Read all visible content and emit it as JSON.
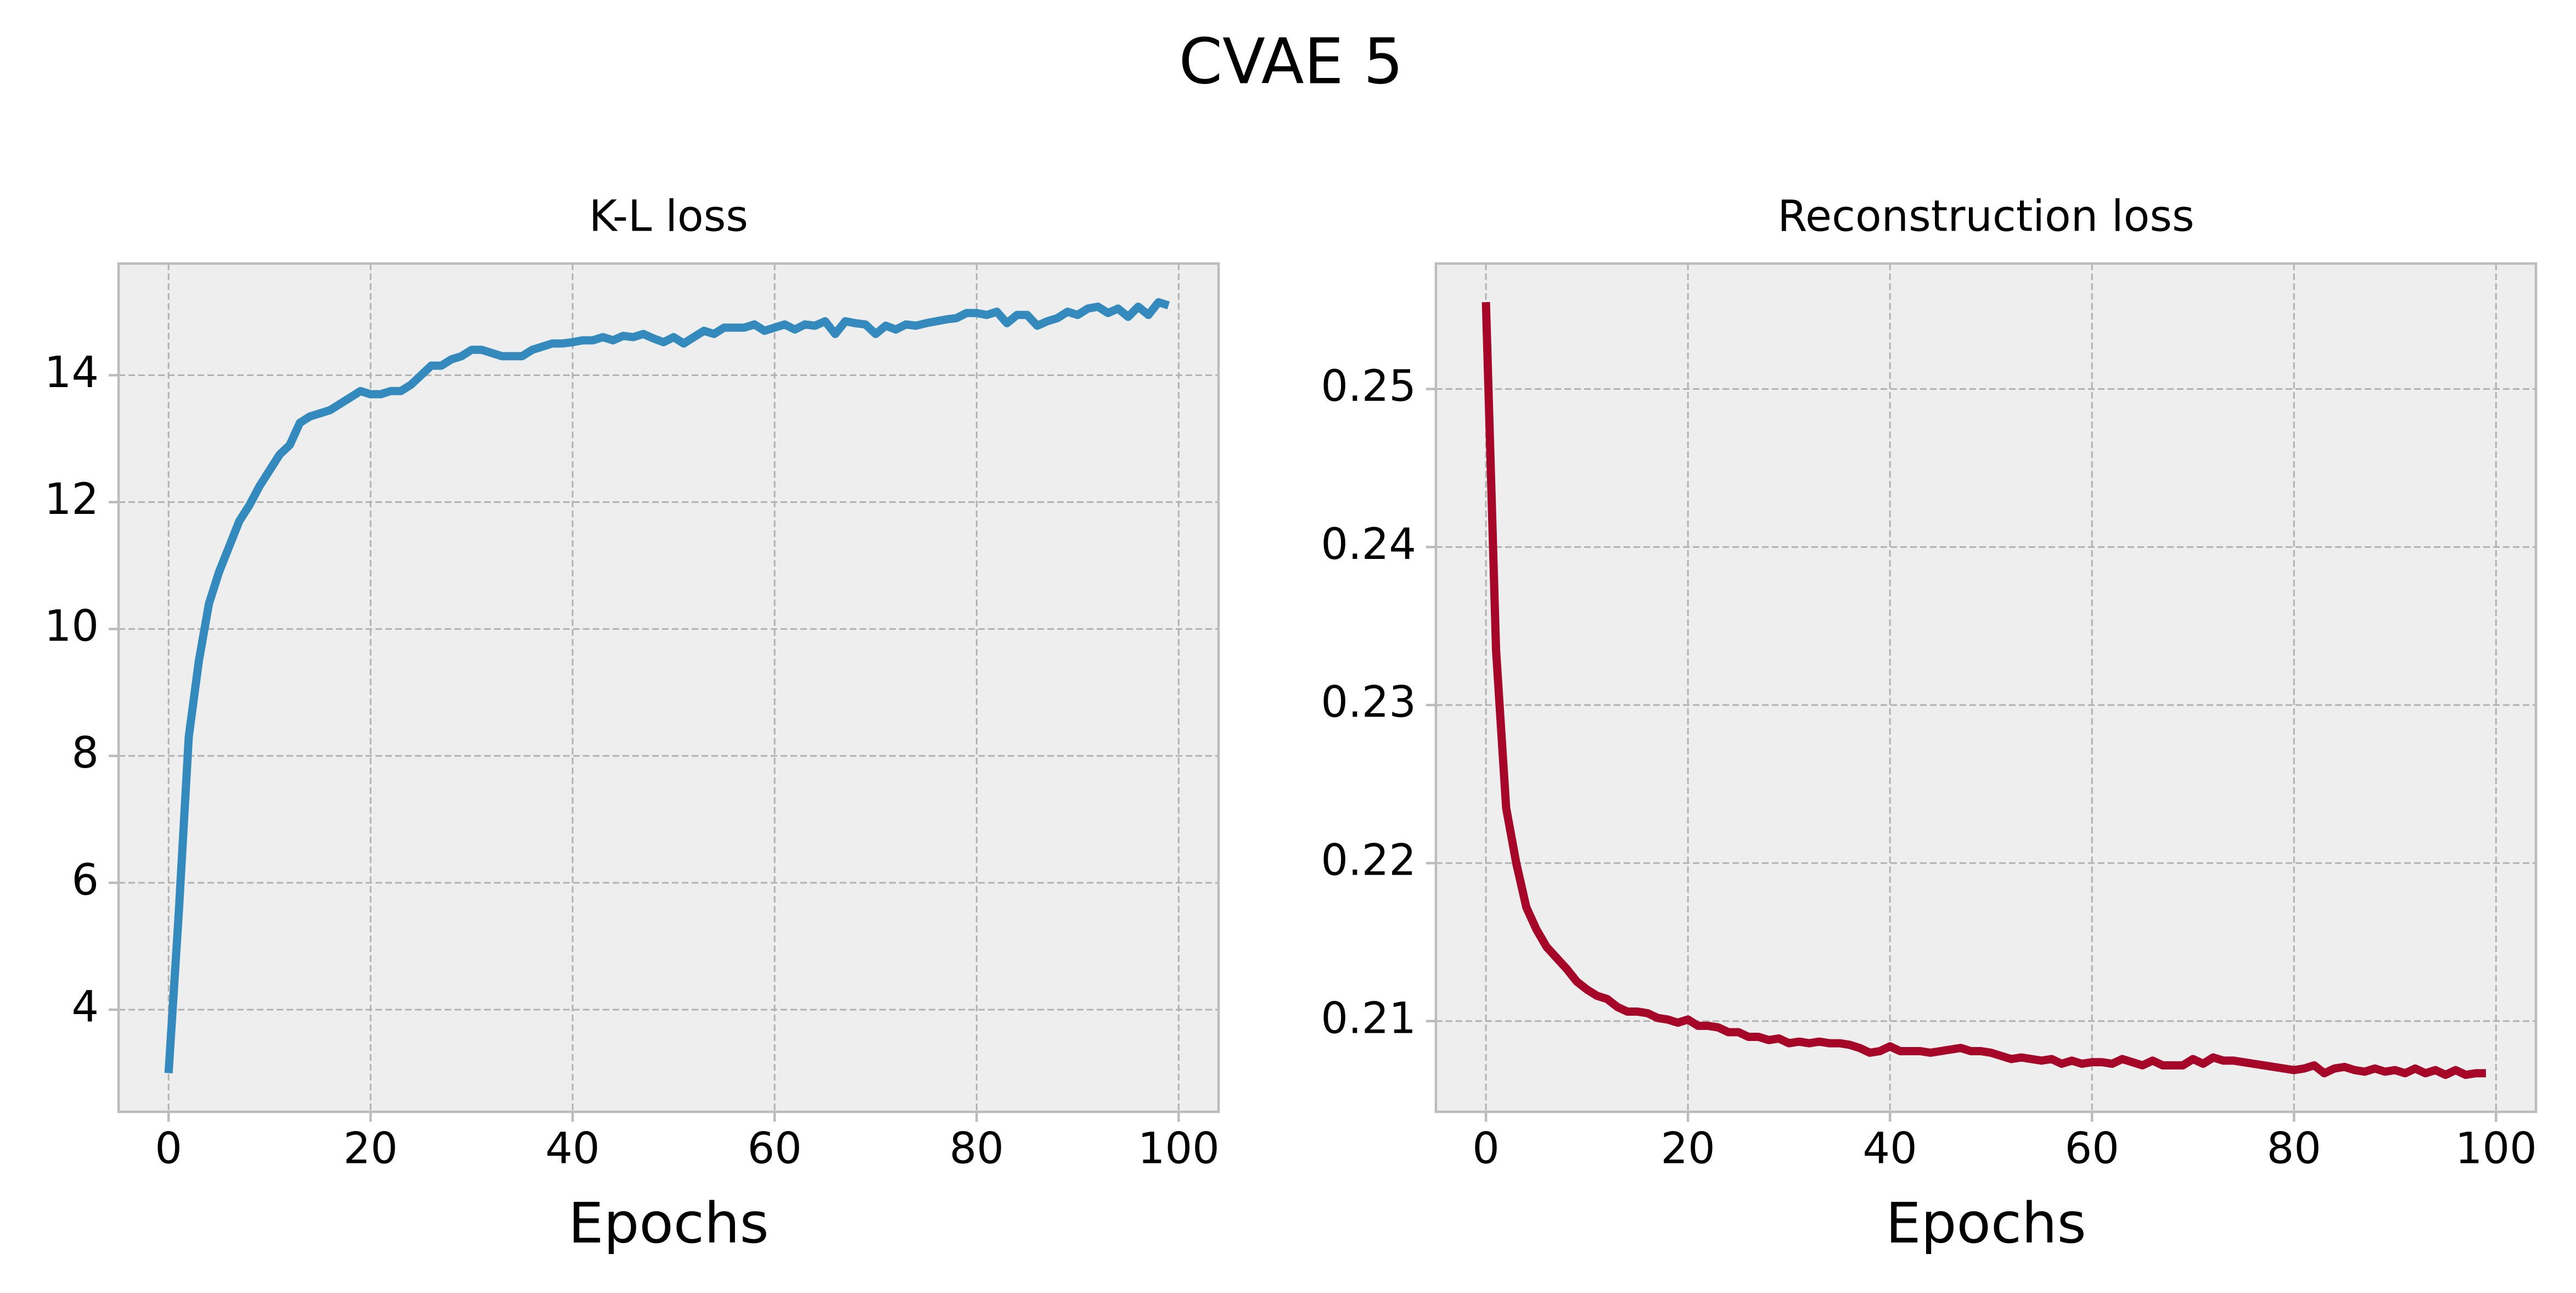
{
  "title": "CVAE 5",
  "chart_data": [
    {
      "type": "line",
      "title": "K-L loss",
      "xlabel": "Epochs",
      "x": [
        0,
        1,
        2,
        3,
        4,
        5,
        6,
        7,
        8,
        9,
        10,
        11,
        12,
        13,
        14,
        15,
        16,
        17,
        18,
        19,
        20,
        21,
        22,
        23,
        24,
        25,
        26,
        27,
        28,
        29,
        30,
        31,
        32,
        33,
        34,
        35,
        36,
        37,
        38,
        39,
        40,
        41,
        42,
        43,
        44,
        45,
        46,
        47,
        48,
        49,
        50,
        51,
        52,
        53,
        54,
        55,
        56,
        57,
        58,
        59,
        60,
        61,
        62,
        63,
        64,
        65,
        66,
        67,
        68,
        69,
        70,
        71,
        72,
        73,
        74,
        75,
        76,
        77,
        78,
        79,
        80,
        81,
        82,
        83,
        84,
        85,
        86,
        87,
        88,
        89,
        90,
        91,
        92,
        93,
        94,
        95,
        96,
        97,
        98,
        99
      ],
      "series": [
        {
          "color": "#348ABD",
          "values": [
            3.0,
            5.5,
            8.3,
            9.5,
            10.4,
            10.9,
            11.3,
            11.7,
            11.95,
            12.25,
            12.5,
            12.75,
            12.9,
            13.25,
            13.35,
            13.4,
            13.45,
            13.55,
            13.65,
            13.75,
            13.7,
            13.7,
            13.75,
            13.75,
            13.85,
            14.0,
            14.15,
            14.15,
            14.25,
            14.3,
            14.4,
            14.4,
            14.35,
            14.3,
            14.3,
            14.3,
            14.4,
            14.45,
            14.5,
            14.5,
            14.52,
            14.55,
            14.55,
            14.6,
            14.55,
            14.62,
            14.6,
            14.65,
            14.58,
            14.52,
            14.6,
            14.5,
            14.6,
            14.7,
            14.65,
            14.75,
            14.75,
            14.75,
            14.8,
            14.7,
            14.75,
            14.8,
            14.72,
            14.8,
            14.78,
            14.85,
            14.65,
            14.85,
            14.82,
            14.8,
            14.65,
            14.78,
            14.72,
            14.8,
            14.78,
            14.82,
            14.85,
            14.88,
            14.9,
            14.98,
            14.98,
            14.95,
            15.0,
            14.82,
            14.95,
            14.95,
            14.78,
            14.85,
            14.9,
            15.0,
            14.95,
            15.05,
            15.08,
            14.98,
            15.05,
            14.92,
            15.08,
            14.95,
            15.15,
            15.1
          ]
        }
      ],
      "xlim": [
        -4.95,
        103.95
      ],
      "xticks": [
        0,
        20,
        40,
        60,
        80,
        100
      ],
      "ylim": [
        2.39,
        15.76
      ],
      "yticks": [
        4,
        6,
        8,
        10,
        12,
        14
      ],
      "grid": true
    },
    {
      "type": "line",
      "title": "Reconstruction loss",
      "xlabel": "Epochs",
      "x": [
        0,
        1,
        2,
        3,
        4,
        5,
        6,
        7,
        8,
        9,
        10,
        11,
        12,
        13,
        14,
        15,
        16,
        17,
        18,
        19,
        20,
        21,
        22,
        23,
        24,
        25,
        26,
        27,
        28,
        29,
        30,
        31,
        32,
        33,
        34,
        35,
        36,
        37,
        38,
        39,
        40,
        41,
        42,
        43,
        44,
        45,
        46,
        47,
        48,
        49,
        50,
        51,
        52,
        53,
        54,
        55,
        56,
        57,
        58,
        59,
        60,
        61,
        62,
        63,
        64,
        65,
        66,
        67,
        68,
        69,
        70,
        71,
        72,
        73,
        74,
        75,
        76,
        77,
        78,
        79,
        80,
        81,
        82,
        83,
        84,
        85,
        86,
        87,
        88,
        89,
        90,
        91,
        92,
        93,
        94,
        95,
        96,
        97,
        98,
        99
      ],
      "series": [
        {
          "color": "#A60628",
          "values": [
            0.2555,
            0.2335,
            0.2235,
            0.22,
            0.2172,
            0.2158,
            0.2147,
            0.214,
            0.2133,
            0.2125,
            0.212,
            0.2116,
            0.2114,
            0.2109,
            0.2106,
            0.2106,
            0.2105,
            0.2102,
            0.2101,
            0.2099,
            0.2101,
            0.2097,
            0.2097,
            0.2096,
            0.2093,
            0.2093,
            0.209,
            0.209,
            0.2088,
            0.2089,
            0.2086,
            0.2087,
            0.2086,
            0.2087,
            0.2086,
            0.2086,
            0.2085,
            0.2083,
            0.208,
            0.2081,
            0.2084,
            0.2081,
            0.2081,
            0.2081,
            0.208,
            0.2081,
            0.2082,
            0.2083,
            0.2081,
            0.2081,
            0.208,
            0.2078,
            0.2076,
            0.2077,
            0.2076,
            0.2075,
            0.2076,
            0.2073,
            0.2075,
            0.2073,
            0.2074,
            0.2074,
            0.2073,
            0.2076,
            0.2074,
            0.2072,
            0.2075,
            0.2072,
            0.2072,
            0.2072,
            0.2076,
            0.2073,
            0.2077,
            0.2075,
            0.2075,
            0.2074,
            0.2073,
            0.2072,
            0.2071,
            0.207,
            0.2069,
            0.207,
            0.2072,
            0.2067,
            0.207,
            0.2071,
            0.2069,
            0.2068,
            0.207,
            0.2068,
            0.2069,
            0.2067,
            0.207,
            0.2067,
            0.2069,
            0.2066,
            0.2069,
            0.2066,
            0.2067,
            0.2067
          ]
        }
      ],
      "xlim": [
        -4.95,
        103.95
      ],
      "xticks": [
        0,
        20,
        40,
        60,
        80,
        100
      ],
      "ylim": [
        0.20426,
        0.25794
      ],
      "yticks": [
        0.21,
        0.22,
        0.23,
        0.24,
        0.25
      ],
      "grid": true
    }
  ]
}
